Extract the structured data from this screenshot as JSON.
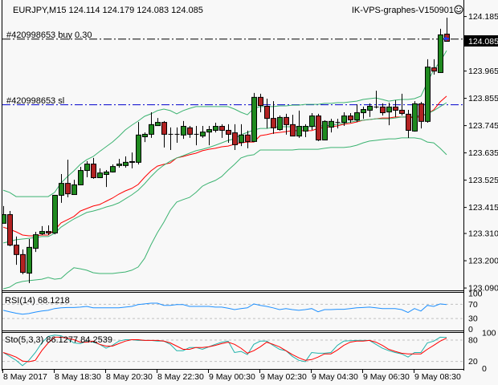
{
  "header": {
    "symbol_info": "EURJPY,M15  124.114 124.179 124.083 124.085",
    "expert_name": "IK-VPS-graphes-V150901",
    "expert_icon": "smiley-icon"
  },
  "orders": {
    "buy_label": "#420998653 buy 0.30",
    "buy_price": 124.094,
    "sl_label": "#420998653 sl",
    "sl_price": 123.829
  },
  "current_price_label": "124.085",
  "colors": {
    "bull": "#1f8a1f",
    "bear": "#b22222",
    "bands": "#3cb371",
    "ma": "#ff0000",
    "rsi": "#1e90ff",
    "sto_main": "#20b2aa",
    "sto_signal": "#ff0000",
    "sl_line": "#0000cd"
  },
  "chart_data": [
    {
      "type": "candlestick",
      "title": "EURJPY,M15",
      "ylim": [
        123.077,
        124.25
      ],
      "yticks": [
        "124.185",
        "123.965",
        "123.855",
        "123.745",
        "123.635",
        "123.525",
        "123.415",
        "123.310",
        "123.200",
        "123.090"
      ],
      "xticks": [
        {
          "bar": 0,
          "label": "8 May 2017"
        },
        {
          "bar": 8,
          "label": "8 May 18:30"
        },
        {
          "bar": 16,
          "label": "8 May 20:30"
        },
        {
          "bar": 24,
          "label": "8 May 22:30"
        },
        {
          "bar": 32,
          "label": "9 May 00:30"
        },
        {
          "bar": 40,
          "label": "9 May 02:30"
        },
        {
          "bar": 48,
          "label": "9 May 04:30"
        },
        {
          "bar": 56,
          "label": "9 May 06:30"
        },
        {
          "bar": 64,
          "label": "9 May 08:30"
        }
      ],
      "ohlc": [
        [
          123.351,
          123.419,
          123.351,
          123.386
        ],
        [
          123.386,
          123.399,
          123.257,
          123.263
        ],
        [
          123.263,
          123.296,
          123.182,
          123.225
        ],
        [
          123.225,
          123.244,
          123.144,
          123.153
        ],
        [
          123.15,
          123.286,
          123.108,
          123.254
        ],
        [
          123.25,
          123.315,
          123.234,
          123.305
        ],
        [
          123.309,
          123.338,
          123.302,
          123.318
        ],
        [
          123.318,
          123.341,
          123.302,
          123.312
        ],
        [
          123.312,
          123.464,
          123.305,
          123.464
        ],
        [
          123.464,
          123.548,
          123.432,
          123.512
        ],
        [
          123.512,
          123.606,
          123.454,
          123.47
        ],
        [
          123.467,
          123.525,
          123.464,
          123.506
        ],
        [
          123.506,
          123.577,
          123.503,
          123.564
        ],
        [
          123.564,
          123.6,
          123.535,
          123.59
        ],
        [
          123.59,
          123.613,
          123.529,
          123.535
        ],
        [
          123.535,
          123.571,
          123.532,
          123.554
        ],
        [
          123.548,
          123.564,
          123.496,
          123.558
        ],
        [
          123.558,
          123.587,
          123.554,
          123.58
        ],
        [
          123.584,
          123.609,
          123.574,
          123.59
        ],
        [
          123.584,
          123.619,
          123.574,
          123.597
        ],
        [
          123.597,
          123.635,
          123.571,
          123.6
        ],
        [
          123.597,
          123.758,
          123.587,
          123.707
        ],
        [
          123.7,
          123.716,
          123.677,
          123.71
        ],
        [
          123.71,
          123.797,
          123.694,
          123.749
        ],
        [
          123.745,
          123.774,
          123.742,
          123.758
        ],
        [
          123.758,
          123.762,
          123.655,
          123.71
        ],
        [
          123.71,
          123.736,
          123.645,
          123.71
        ],
        [
          123.71,
          123.736,
          123.674,
          123.71
        ],
        [
          123.707,
          123.762,
          123.69,
          123.742
        ],
        [
          123.736,
          123.742,
          123.694,
          123.71
        ],
        [
          123.71,
          123.742,
          123.664,
          123.71
        ],
        [
          123.703,
          123.742,
          123.694,
          123.719
        ],
        [
          123.719,
          123.742,
          123.664,
          123.729
        ],
        [
          123.726,
          123.755,
          123.716,
          123.742
        ],
        [
          123.742,
          123.749,
          123.694,
          123.726
        ],
        [
          123.726,
          123.749,
          123.674,
          123.71
        ],
        [
          123.716,
          123.749,
          123.645,
          123.668
        ],
        [
          123.677,
          123.749,
          123.661,
          123.707
        ],
        [
          123.707,
          123.723,
          123.652,
          123.681
        ],
        [
          123.681,
          123.875,
          123.677,
          123.859
        ],
        [
          123.859,
          123.872,
          123.797,
          123.826
        ],
        [
          123.823,
          123.852,
          123.732,
          123.774
        ],
        [
          123.774,
          123.842,
          123.71,
          123.736
        ],
        [
          123.729,
          123.784,
          123.723,
          123.778
        ],
        [
          123.778,
          123.791,
          123.707,
          123.749
        ],
        [
          123.749,
          123.787,
          123.703,
          123.703
        ],
        [
          123.703,
          123.804,
          123.694,
          123.742
        ],
        [
          123.723,
          123.749,
          123.697,
          123.742
        ],
        [
          123.742,
          123.794,
          123.726,
          123.784
        ],
        [
          123.784,
          123.791,
          123.681,
          123.687
        ],
        [
          123.687,
          123.765,
          123.684,
          123.762
        ],
        [
          123.739,
          123.771,
          123.716,
          123.762
        ],
        [
          123.758,
          123.771,
          123.732,
          123.758
        ],
        [
          123.758,
          123.797,
          123.742,
          123.784
        ],
        [
          123.784,
          123.794,
          123.755,
          123.768
        ],
        [
          123.768,
          123.829,
          123.758,
          123.797
        ],
        [
          123.797,
          123.82,
          123.771,
          123.81
        ],
        [
          123.807,
          123.833,
          123.778,
          123.823
        ],
        [
          123.82,
          123.884,
          123.813,
          123.82
        ],
        [
          123.82,
          123.833,
          123.784,
          123.797
        ],
        [
          123.8,
          123.836,
          123.745,
          123.82
        ],
        [
          123.82,
          123.846,
          123.778,
          123.807
        ],
        [
          123.807,
          123.872,
          123.784,
          123.794
        ],
        [
          123.791,
          123.807,
          123.694,
          123.726
        ],
        [
          123.723,
          123.842,
          123.719,
          123.833
        ],
        [
          123.833,
          123.839,
          123.732,
          123.762
        ],
        [
          123.762,
          124.011,
          123.755,
          123.981
        ],
        [
          123.978,
          124.011,
          123.949,
          123.965
        ],
        [
          123.959,
          124.134,
          123.956,
          124.111
        ],
        [
          124.114,
          124.179,
          124.083,
          124.085
        ]
      ],
      "series": [
        {
          "name": "Moving Average",
          "color_key": "ma",
          "values": [
            123.334,
            123.325,
            123.315,
            123.302,
            123.299,
            123.299,
            123.302,
            123.302,
            123.322,
            123.351,
            123.364,
            123.377,
            123.399,
            123.409,
            123.419,
            123.425,
            123.438,
            123.451,
            123.467,
            123.48,
            123.49,
            123.506,
            123.535,
            123.561,
            123.58,
            123.587,
            123.593,
            123.613,
            123.619,
            123.626,
            123.632,
            123.642,
            123.648,
            123.652,
            123.658,
            123.661,
            123.668,
            123.674,
            123.677,
            123.677,
            123.703,
            123.707,
            123.713,
            123.716,
            123.719,
            123.723,
            123.723,
            123.723,
            123.723,
            123.732,
            123.736,
            123.739,
            123.742,
            123.749,
            123.752,
            123.758,
            123.765,
            123.768,
            123.771,
            123.774,
            123.774,
            123.778,
            123.778,
            123.778,
            123.774,
            123.781,
            123.791,
            123.807,
            123.839,
            123.862
          ]
        },
        {
          "name": "Bands Upper",
          "color_key": "bands",
          "values": [
            123.483,
            123.474,
            123.457,
            123.457,
            123.457,
            123.457,
            123.457,
            123.457,
            123.474,
            123.512,
            123.538,
            123.561,
            123.587,
            123.606,
            123.619,
            123.639,
            123.658,
            123.677,
            123.7,
            123.726,
            123.745,
            123.762,
            123.781,
            123.791,
            123.804,
            123.81,
            123.804,
            123.791,
            123.804,
            123.813,
            123.82,
            123.82,
            123.82,
            123.82,
            123.82,
            123.82,
            123.81,
            123.797,
            123.787,
            123.813,
            123.82,
            123.82,
            123.82,
            123.823,
            123.823,
            123.826,
            123.826,
            123.829,
            123.829,
            123.829,
            123.833,
            123.833,
            123.836,
            123.836,
            123.839,
            123.842,
            123.849,
            123.852,
            123.855,
            123.849,
            123.842,
            123.846,
            123.849,
            123.849,
            123.852,
            123.862,
            123.917,
            123.969,
            124.001,
            124.046
          ]
        },
        {
          "name": "Bands Middle",
          "color_key": "bands",
          "values": [
            123.27,
            123.276,
            123.283,
            123.286,
            123.289,
            123.292,
            123.296,
            123.296,
            123.309,
            123.334,
            123.351,
            123.367,
            123.38,
            123.393,
            123.399,
            123.406,
            123.415,
            123.422,
            123.432,
            123.448,
            123.464,
            123.483,
            123.509,
            123.538,
            123.564,
            123.584,
            123.6,
            123.613,
            123.622,
            123.632,
            123.642,
            123.648,
            123.655,
            123.664,
            123.674,
            123.684,
            123.69,
            123.707,
            123.716,
            123.726,
            123.732,
            123.732,
            123.736,
            123.739,
            123.739,
            123.739,
            123.739,
            123.739,
            123.739,
            123.742,
            123.742,
            123.745,
            123.749,
            123.752,
            123.758,
            123.762,
            123.765,
            123.768,
            123.771,
            123.771,
            123.771,
            123.774,
            123.778,
            123.778,
            123.781,
            123.784,
            123.791,
            123.804,
            123.82,
            123.836
          ]
        },
        {
          "name": "Bands Lower",
          "color_key": "bands",
          "values": [
            123.085,
            123.092,
            123.108,
            123.115,
            123.118,
            123.121,
            123.124,
            123.131,
            123.124,
            123.127,
            123.15,
            123.17,
            123.166,
            123.16,
            123.15,
            123.147,
            123.147,
            123.147,
            123.15,
            123.153,
            123.16,
            123.173,
            123.208,
            123.263,
            123.312,
            123.354,
            123.402,
            123.435,
            123.445,
            123.454,
            123.474,
            123.499,
            123.512,
            123.522,
            123.538,
            123.564,
            123.587,
            123.613,
            123.622,
            123.626,
            123.645,
            123.645,
            123.645,
            123.645,
            123.645,
            123.645,
            123.648,
            123.648,
            123.648,
            123.648,
            123.652,
            123.655,
            123.655,
            123.655,
            123.658,
            123.664,
            123.674,
            123.681,
            123.684,
            123.687,
            123.69,
            123.69,
            123.694,
            123.694,
            123.694,
            123.69,
            123.677,
            123.674,
            123.652,
            123.626
          ]
        }
      ]
    },
    {
      "type": "line",
      "title": "RSI(14) 68.1218",
      "ylim": [
        0,
        100
      ],
      "yticks": [
        "100",
        "70",
        "30",
        "0"
      ],
      "levels": [
        70,
        30
      ],
      "series": [
        {
          "name": "RSI(14)",
          "color_key": "rsi",
          "values": [
            52,
            48,
            44,
            41,
            43,
            47,
            50,
            52,
            57,
            59,
            60,
            60,
            61,
            63,
            59,
            59,
            59,
            59,
            59,
            61,
            63,
            68,
            70,
            72,
            72,
            66,
            66,
            68,
            68,
            63,
            63,
            63,
            63,
            61,
            61,
            58,
            54,
            57,
            59,
            70,
            66,
            63,
            59,
            54,
            57,
            54,
            52,
            54,
            57,
            48,
            54,
            54,
            55,
            55,
            57,
            59,
            60,
            61,
            59,
            57,
            57,
            57,
            54,
            46,
            57,
            50,
            66,
            63,
            70,
            68.1218
          ]
        }
      ]
    },
    {
      "type": "line",
      "title": "Sto(5,3,3) 86.1277 84.2539",
      "ylim": [
        0,
        100
      ],
      "yticks": [
        "100",
        "80",
        "20",
        "0"
      ],
      "levels": [
        80,
        20
      ],
      "series": [
        {
          "name": "Main",
          "color_key": "sto_main",
          "values": [
            44,
            33,
            22,
            7,
            22,
            44,
            71,
            89,
            93,
            91,
            82,
            71,
            69,
            76,
            73,
            67,
            56,
            64,
            76,
            80,
            80,
            78,
            78,
            78,
            76,
            76,
            67,
            49,
            49,
            58,
            58,
            53,
            60,
            67,
            73,
            76,
            44,
            47,
            38,
            67,
            76,
            76,
            64,
            53,
            49,
            33,
            22,
            18,
            44,
            42,
            42,
            44,
            64,
            76,
            77,
            78,
            78,
            78,
            67,
            56,
            49,
            44,
            40,
            31,
            44,
            44,
            71,
            76,
            87,
            86.1277
          ]
        },
        {
          "name": "Signal",
          "color_key": "sto_signal",
          "values": [
            44,
            38,
            31,
            20,
            18,
            22,
            49,
            71,
            87,
            87,
            84,
            80,
            73,
            73,
            76,
            67,
            62,
            62,
            69,
            76,
            80,
            80,
            78,
            78,
            78,
            76,
            71,
            62,
            53,
            53,
            58,
            58,
            60,
            64,
            69,
            73,
            67,
            56,
            42,
            49,
            60,
            73,
            67,
            60,
            49,
            38,
            29,
            22,
            24,
            31,
            40,
            40,
            51,
            64,
            73,
            76,
            76,
            78,
            73,
            64,
            53,
            47,
            42,
            40,
            40,
            40,
            53,
            64,
            76,
            84.2539
          ]
        }
      ]
    }
  ]
}
